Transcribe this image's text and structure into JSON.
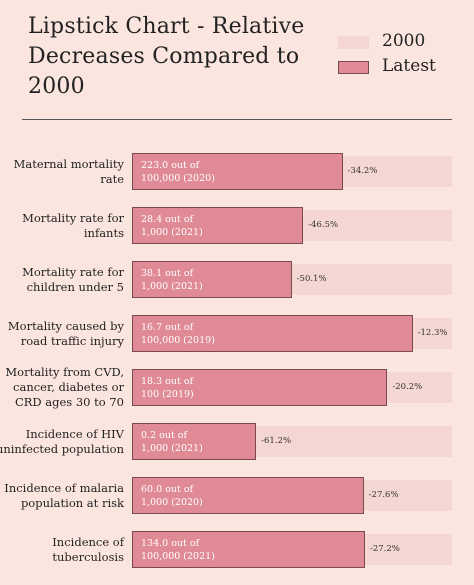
{
  "title": "Lipstick Chart - Relative Decreases Compared to 2000",
  "legend": [
    {
      "label": "2000",
      "color": "#f4d6d3"
    },
    {
      "label": "Latest",
      "color": "#df8a95"
    }
  ],
  "chart_data": {
    "type": "bar",
    "title": "Lipstick Chart - Relative Decreases Compared to 2000",
    "orientation": "horizontal",
    "series": [
      {
        "name": "2000",
        "values": [
          100,
          100,
          100,
          100,
          100,
          100,
          100,
          100
        ]
      },
      {
        "name": "Latest",
        "values": [
          65.8,
          53.5,
          49.9,
          87.7,
          79.8,
          38.8,
          72.4,
          72.8
        ]
      }
    ],
    "categories": [
      "Maternal mortality\nrate",
      "Mortality rate for\ninfants",
      "Mortality rate for\nchildren under 5",
      "Mortality caused by\nroad traffic injury",
      "Mortality from CVD,\ncancer, diabetes or\nCRD ages 30 to 70",
      "Incidence of HIV\nuninfected population",
      "Incidence of malaria\npopulation at risk",
      "Incidence of\ntuberculosis"
    ],
    "bar_labels": [
      "223.0 out of\n100,000 (2020)",
      "28.4 out of\n1,000 (2021)",
      "38.1 out of\n1,000 (2021)",
      "16.7 out of\n100,000 (2019)",
      "18.3 out of\n100 (2019)",
      "0.2 out of\n1,000 (2021)",
      "60.0 out of\n1,000 (2020)",
      "134.0 out of\n100,000 (2021)"
    ],
    "change_labels": [
      "-34.2%",
      "-46.5%",
      "-50.1%",
      "-12.3%",
      "-20.2%",
      "-61.2%",
      "-27.6%",
      "-27.2%"
    ],
    "xlim": [
      0,
      100
    ]
  }
}
